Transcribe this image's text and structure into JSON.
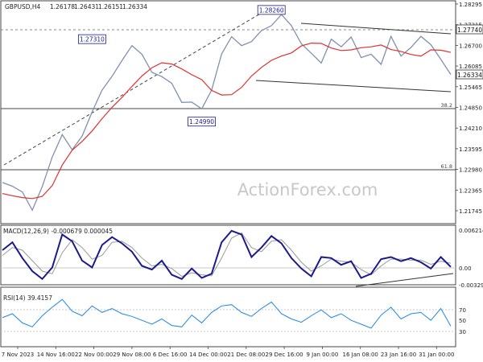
{
  "chart_data": [
    {
      "type": "line",
      "title": "GBPUSD,H4",
      "ohlc": [
        "1.26178",
        "1.26431",
        "1.26151",
        "1.26334"
      ],
      "x_ticks": [
        "7 Nov 2023",
        "14 Nov 16:00",
        "22 Nov 00:00",
        "29 Nov 08:00",
        "6 Dec 16:00",
        "14 Dec 00:00",
        "21 Dec 08:00",
        "29 Dec 16:00",
        "9 Jan 00:00",
        "16 Jan 08:00",
        "23 Jan 16:00",
        "31 Jan 00:00"
      ],
      "y_ticks": [
        1.2756,
        1.27315,
        1.2707,
        1.26825,
        1.2658,
        1.26335,
        1.2609,
        1.25845,
        1.256,
        1.25355,
        1.2511,
        1.24865,
        1.2462,
        1.24375,
        1.2413,
        1.23885,
        1.2364,
        1.23395,
        1.2315,
        1.22905,
        1.2266,
        1.22415,
        1.2217,
        1.21925,
        1.2168
      ],
      "y_tick_labels": [
        "1.28295",
        "1.27315",
        "1.26700",
        "1.26085",
        "1.25465",
        "1.24850",
        "1.24210",
        "1.23595",
        "1.22980",
        "1.22365",
        "1.21745"
      ],
      "ylim": [
        1.2155,
        1.2865
      ],
      "current_price": "1.26334",
      "line_label": "1.27740",
      "series": [
        {
          "name": "",
          "color": "#e03030",
          "values": [
            1.2245,
            1.2238,
            1.2232,
            1.2229,
            1.2236,
            1.2271,
            1.2338,
            1.2386,
            1.2415,
            1.2449,
            1.2489,
            1.2526,
            1.2558,
            1.2594,
            1.2628,
            1.2655,
            1.2671,
            1.2667,
            1.2651,
            1.2632,
            1.2616,
            1.2581,
            1.2566,
            1.2567,
            1.2591,
            1.2628,
            1.2656,
            1.2679,
            1.2693,
            1.2703,
            1.2726,
            1.2735,
            1.2734,
            1.2719,
            1.2711,
            1.2713,
            1.272,
            1.2723,
            1.2729,
            1.2714,
            1.2708,
            1.2698,
            1.2693,
            1.2713,
            1.2712,
            1.2705
          ]
        },
        {
          "name": "",
          "color": "#8090b0",
          "values": [
            1.2281,
            1.2269,
            1.225,
            1.2191,
            1.2268,
            1.2364,
            1.2437,
            1.2388,
            1.2432,
            1.2511,
            1.2582,
            1.2627,
            1.2678,
            1.2727,
            1.2699,
            1.264,
            1.2626,
            1.2604,
            1.2542,
            1.2543,
            1.2521,
            1.2582,
            1.27,
            1.2756,
            1.2727,
            1.274,
            1.2776,
            1.2792,
            1.2828,
            1.2792,
            1.2733,
            1.2702,
            1.267,
            1.2748,
            1.2723,
            1.2755,
            1.2688,
            1.2699,
            1.2666,
            1.2757,
            1.2693,
            1.2721,
            1.2757,
            1.273,
            1.2682,
            1.2633
          ]
        }
      ],
      "annotations": [
        {
          "label": "1.28260",
          "x": 27,
          "y": 1.2826
        },
        {
          "label": "1.27310",
          "x": 9,
          "y": 1.2731
        },
        {
          "label": "1.24990",
          "x": 20,
          "y": 1.2499
        }
      ],
      "levels": [
        {
          "label": "38.2",
          "value": 1.253
        },
        {
          "label": "61.8",
          "value": 1.2363
        }
      ],
      "watermark": "ActionForex.com"
    },
    {
      "type": "line",
      "title": "MACD(12,26,9) -0.000679 0.000045",
      "y_tick_labels": [
        "0.006214",
        "0.00",
        "-0.003292"
      ],
      "ylim": [
        -0.0038,
        0.0068
      ],
      "series": [
        {
          "name": "",
          "color": "#1a1a8c",
          "values": [
            0.0025,
            0.004,
            0.001,
            -0.0015,
            -0.003,
            -0.0008,
            0.0055,
            0.0042,
            0.0005,
            -0.0008,
            0.0035,
            0.005,
            0.0038,
            0.0022,
            -0.0005,
            -0.0012,
            0.0005,
            -0.0022,
            -0.003,
            -0.001,
            -0.0028,
            -0.002,
            0.004,
            0.0062,
            0.0055,
            0.0012,
            0.003,
            0.0052,
            0.0038,
            0.001,
            -0.001,
            -0.0025,
            0.0012,
            0.001,
            -0.0003,
            0.0004,
            -0.0028,
            -0.002,
            0.0008,
            0.0012,
            0.0004,
            0.001,
            0.0002,
            -0.001,
            0.0012,
            -0.0007
          ]
        },
        {
          "name": "",
          "color": "#999999",
          "values": [
            0.0015,
            0.003,
            0.0025,
            0.0005,
            -0.0015,
            -0.002,
            0.002,
            0.0045,
            0.003,
            0.0008,
            0.0015,
            0.004,
            0.0042,
            0.003,
            0.001,
            -0.0005,
            -0.0002,
            -0.001,
            -0.0025,
            -0.0018,
            -0.0022,
            -0.0024,
            0.001,
            0.0048,
            0.0058,
            0.003,
            0.0022,
            0.0042,
            0.0045,
            0.0025,
            0.0002,
            -0.0015,
            -0.0005,
            0.0008,
            0.0004,
            0.0002,
            -0.0012,
            -0.0022,
            -0.0005,
            0.0008,
            0.0008,
            0.0006,
            0.0006,
            -0.0002,
            0.0004,
            0.0
          ]
        }
      ]
    },
    {
      "type": "line",
      "title": "RSI(14) 39.4157",
      "y_tick_labels": [
        "70",
        "50",
        "30"
      ],
      "ylim": [
        10,
        95
      ],
      "levels": [
        70,
        30
      ],
      "series": [
        {
          "name": "",
          "color": "#1e88e5",
          "values": [
            52,
            58,
            44,
            38,
            55,
            68,
            80,
            62,
            55,
            70,
            60,
            66,
            58,
            54,
            48,
            42,
            50,
            40,
            38,
            56,
            44,
            60,
            70,
            72,
            60,
            54,
            66,
            76,
            58,
            50,
            45,
            55,
            64,
            52,
            58,
            48,
            42,
            36,
            56,
            68,
            50,
            58,
            60,
            48,
            66,
            39
          ]
        }
      ]
    }
  ]
}
